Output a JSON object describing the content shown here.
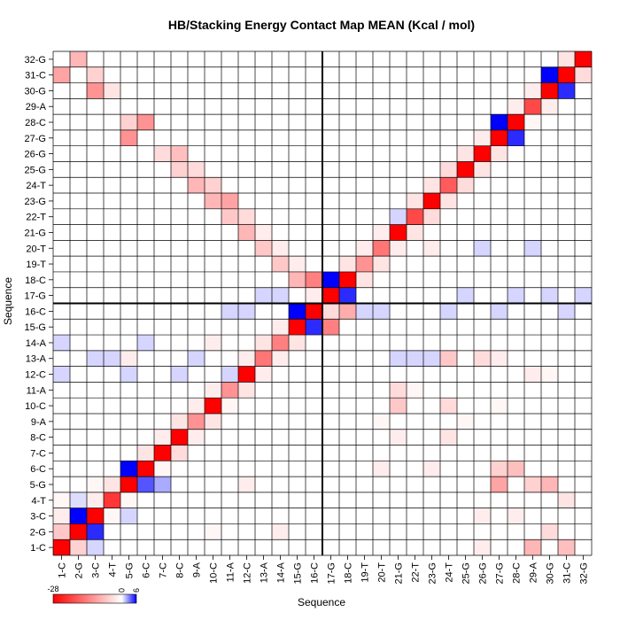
{
  "chart_data": {
    "type": "heatmap",
    "title": "HB/Stacking Energy Contact Map MEAN (Kcal / mol)",
    "xlabel": "Sequence",
    "ylabel": "Sequence",
    "labels": [
      "1-C",
      "2-G",
      "3-C",
      "4-T",
      "5-G",
      "6-C",
      "7-C",
      "8-C",
      "9-A",
      "10-C",
      "11-A",
      "12-C",
      "13-A",
      "14-A",
      "15-G",
      "16-C",
      "17-G",
      "18-C",
      "19-T",
      "20-T",
      "21-G",
      "22-T",
      "23-G",
      "24-T",
      "25-G",
      "26-G",
      "27-G",
      "28-C",
      "29-A",
      "30-G",
      "31-C",
      "32-G"
    ],
    "colorbar": {
      "min": -28,
      "max": 6,
      "ticks": [
        -28,
        0,
        6
      ]
    },
    "grid": true,
    "quadrant_lines_after_index": 16,
    "colors": {
      "negative": "#ff0000",
      "positive": "#0000ff",
      "zero": "#ffffff",
      "grid": "#000000"
    },
    "cells": [
      [
        1,
        1,
        -28
      ],
      [
        1,
        2,
        -6
      ],
      [
        1,
        3,
        -2
      ],
      [
        1,
        4,
        -1
      ],
      [
        1,
        31,
        -10
      ],
      [
        2,
        1,
        -5
      ],
      [
        2,
        2,
        -28
      ],
      [
        2,
        3,
        6
      ],
      [
        2,
        4,
        0.8
      ],
      [
        2,
        32,
        -8
      ],
      [
        3,
        1,
        1
      ],
      [
        3,
        2,
        5
      ],
      [
        3,
        3,
        -28
      ],
      [
        3,
        4,
        -2
      ],
      [
        3,
        5,
        -1
      ],
      [
        3,
        30,
        -12
      ],
      [
        3,
        31,
        -5
      ],
      [
        4,
        3,
        -1
      ],
      [
        4,
        4,
        -22
      ],
      [
        4,
        5,
        -3
      ],
      [
        4,
        30,
        -3
      ],
      [
        5,
        3,
        1
      ],
      [
        5,
        4,
        -1
      ],
      [
        5,
        5,
        -28
      ],
      [
        5,
        6,
        6
      ],
      [
        5,
        27,
        -12
      ],
      [
        5,
        28,
        -5
      ],
      [
        6,
        5,
        4
      ],
      [
        6,
        6,
        -28
      ],
      [
        6,
        7,
        -3
      ],
      [
        6,
        28,
        -12
      ],
      [
        7,
        5,
        2
      ],
      [
        7,
        6,
        -1
      ],
      [
        7,
        7,
        -28
      ],
      [
        7,
        8,
        -2
      ],
      [
        7,
        26,
        -4
      ],
      [
        8,
        7,
        -4
      ],
      [
        8,
        8,
        -28
      ],
      [
        8,
        9,
        -3
      ],
      [
        8,
        25,
        -5
      ],
      [
        8,
        26,
        -7
      ],
      [
        9,
        8,
        -2
      ],
      [
        9,
        9,
        -12
      ],
      [
        9,
        10,
        -2
      ],
      [
        9,
        24,
        -8
      ],
      [
        9,
        25,
        -4
      ],
      [
        10,
        9,
        -3
      ],
      [
        10,
        10,
        -28
      ],
      [
        10,
        11,
        -2
      ],
      [
        10,
        23,
        -8
      ],
      [
        10,
        24,
        -5
      ],
      [
        11,
        10,
        -1
      ],
      [
        11,
        11,
        -12
      ],
      [
        11,
        12,
        1
      ],
      [
        11,
        22,
        -6
      ],
      [
        11,
        23,
        -10
      ],
      [
        12,
        11,
        -3
      ],
      [
        12,
        12,
        -28
      ],
      [
        12,
        13,
        -2
      ],
      [
        12,
        21,
        -8
      ],
      [
        12,
        22,
        -4
      ],
      [
        13,
        12,
        -2
      ],
      [
        13,
        13,
        -15
      ],
      [
        13,
        14,
        -3
      ],
      [
        13,
        20,
        -6
      ],
      [
        13,
        21,
        -2
      ],
      [
        14,
        13,
        -2
      ],
      [
        14,
        14,
        -14
      ],
      [
        14,
        15,
        -2
      ],
      [
        14,
        19,
        -6
      ],
      [
        14,
        20,
        -2
      ],
      [
        15,
        14,
        -3
      ],
      [
        15,
        15,
        -28
      ],
      [
        15,
        16,
        6
      ],
      [
        15,
        18,
        -8
      ],
      [
        15,
        19,
        -2
      ],
      [
        16,
        15,
        5
      ],
      [
        16,
        16,
        -28
      ],
      [
        16,
        17,
        -2
      ],
      [
        16,
        18,
        -14
      ],
      [
        17,
        15,
        -14
      ],
      [
        17,
        16,
        -4
      ],
      [
        17,
        17,
        -28
      ],
      [
        17,
        18,
        6
      ],
      [
        18,
        16,
        -9
      ],
      [
        18,
        17,
        5
      ],
      [
        18,
        18,
        -28
      ],
      [
        18,
        19,
        -3
      ],
      [
        19,
        18,
        -3
      ],
      [
        19,
        19,
        -12
      ],
      [
        19,
        20,
        -2
      ],
      [
        20,
        19,
        -3
      ],
      [
        20,
        20,
        -15
      ],
      [
        20,
        21,
        -2
      ],
      [
        21,
        20,
        -2
      ],
      [
        21,
        21,
        -28
      ],
      [
        21,
        22,
        1
      ],
      [
        22,
        21,
        -3
      ],
      [
        22,
        22,
        -20
      ],
      [
        22,
        23,
        -3
      ],
      [
        23,
        22,
        -4
      ],
      [
        23,
        23,
        -28
      ],
      [
        23,
        24,
        -3
      ],
      [
        24,
        23,
        -3
      ],
      [
        24,
        24,
        -18
      ],
      [
        24,
        25,
        -4
      ],
      [
        25,
        24,
        -4
      ],
      [
        25,
        25,
        -28
      ],
      [
        25,
        26,
        -3
      ],
      [
        26,
        25,
        -3
      ],
      [
        26,
        26,
        -28
      ],
      [
        26,
        27,
        -2
      ],
      [
        27,
        26,
        -3
      ],
      [
        27,
        27,
        -28
      ],
      [
        27,
        28,
        6
      ],
      [
        28,
        27,
        5
      ],
      [
        28,
        28,
        -28
      ],
      [
        28,
        29,
        -2
      ],
      [
        29,
        28,
        -1
      ],
      [
        29,
        29,
        -20
      ],
      [
        29,
        30,
        -2
      ],
      [
        30,
        29,
        -2
      ],
      [
        30,
        30,
        -28
      ],
      [
        30,
        31,
        6
      ],
      [
        31,
        30,
        5
      ],
      [
        31,
        31,
        -28
      ],
      [
        31,
        32,
        -3
      ],
      [
        32,
        31,
        -4
      ],
      [
        32,
        32,
        -28
      ],
      [
        10,
        2,
        -1
      ],
      [
        12,
        5,
        -2
      ],
      [
        14,
        2,
        -2
      ],
      [
        20,
        6,
        -2
      ],
      [
        21,
        8,
        -2
      ],
      [
        21,
        10,
        -6
      ],
      [
        21,
        11,
        -4
      ],
      [
        23,
        6,
        -2
      ],
      [
        24,
        8,
        -3
      ],
      [
        24,
        10,
        -4
      ],
      [
        26,
        13,
        -4
      ],
      [
        24,
        13,
        -6
      ],
      [
        27,
        13,
        -2
      ],
      [
        10,
        14,
        -2
      ],
      [
        5,
        13,
        -2
      ],
      [
        23,
        20,
        -2
      ],
      [
        29,
        12,
        -2
      ],
      [
        30,
        12,
        -1
      ],
      [
        30,
        2,
        -4
      ],
      [
        29,
        1,
        -8
      ],
      [
        29,
        5,
        -5
      ],
      [
        30,
        5,
        -8
      ],
      [
        31,
        1,
        -7
      ],
      [
        31,
        4,
        -3
      ],
      [
        27,
        5,
        -10
      ],
      [
        28,
        6,
        -7
      ],
      [
        27,
        6,
        -5
      ],
      [
        28,
        3,
        -2
      ],
      [
        26,
        1,
        -2
      ],
      [
        26,
        3,
        -2
      ],
      [
        1,
        12,
        1
      ],
      [
        1,
        14,
        1
      ],
      [
        3,
        13,
        1
      ],
      [
        4,
        13,
        1
      ],
      [
        5,
        12,
        1
      ],
      [
        6,
        14,
        1
      ],
      [
        8,
        12,
        1
      ],
      [
        9,
        13,
        1
      ],
      [
        11,
        16,
        1
      ],
      [
        12,
        16,
        1
      ],
      [
        13,
        17,
        1
      ],
      [
        14,
        17,
        1
      ],
      [
        19,
        16,
        1
      ],
      [
        20,
        16,
        1
      ],
      [
        21,
        13,
        1
      ],
      [
        22,
        13,
        1
      ],
      [
        23,
        13,
        1
      ],
      [
        24,
        16,
        1
      ],
      [
        25,
        17,
        1
      ],
      [
        26,
        20,
        1
      ],
      [
        27,
        16,
        1
      ],
      [
        28,
        17,
        1
      ],
      [
        29,
        20,
        1
      ],
      [
        30,
        17,
        1
      ],
      [
        31,
        16,
        1
      ],
      [
        32,
        17,
        1
      ],
      [
        20,
        9,
        -1
      ],
      [
        22,
        11,
        -1
      ],
      [
        25,
        9,
        -1
      ],
      [
        27,
        10,
        -1
      ]
    ]
  }
}
